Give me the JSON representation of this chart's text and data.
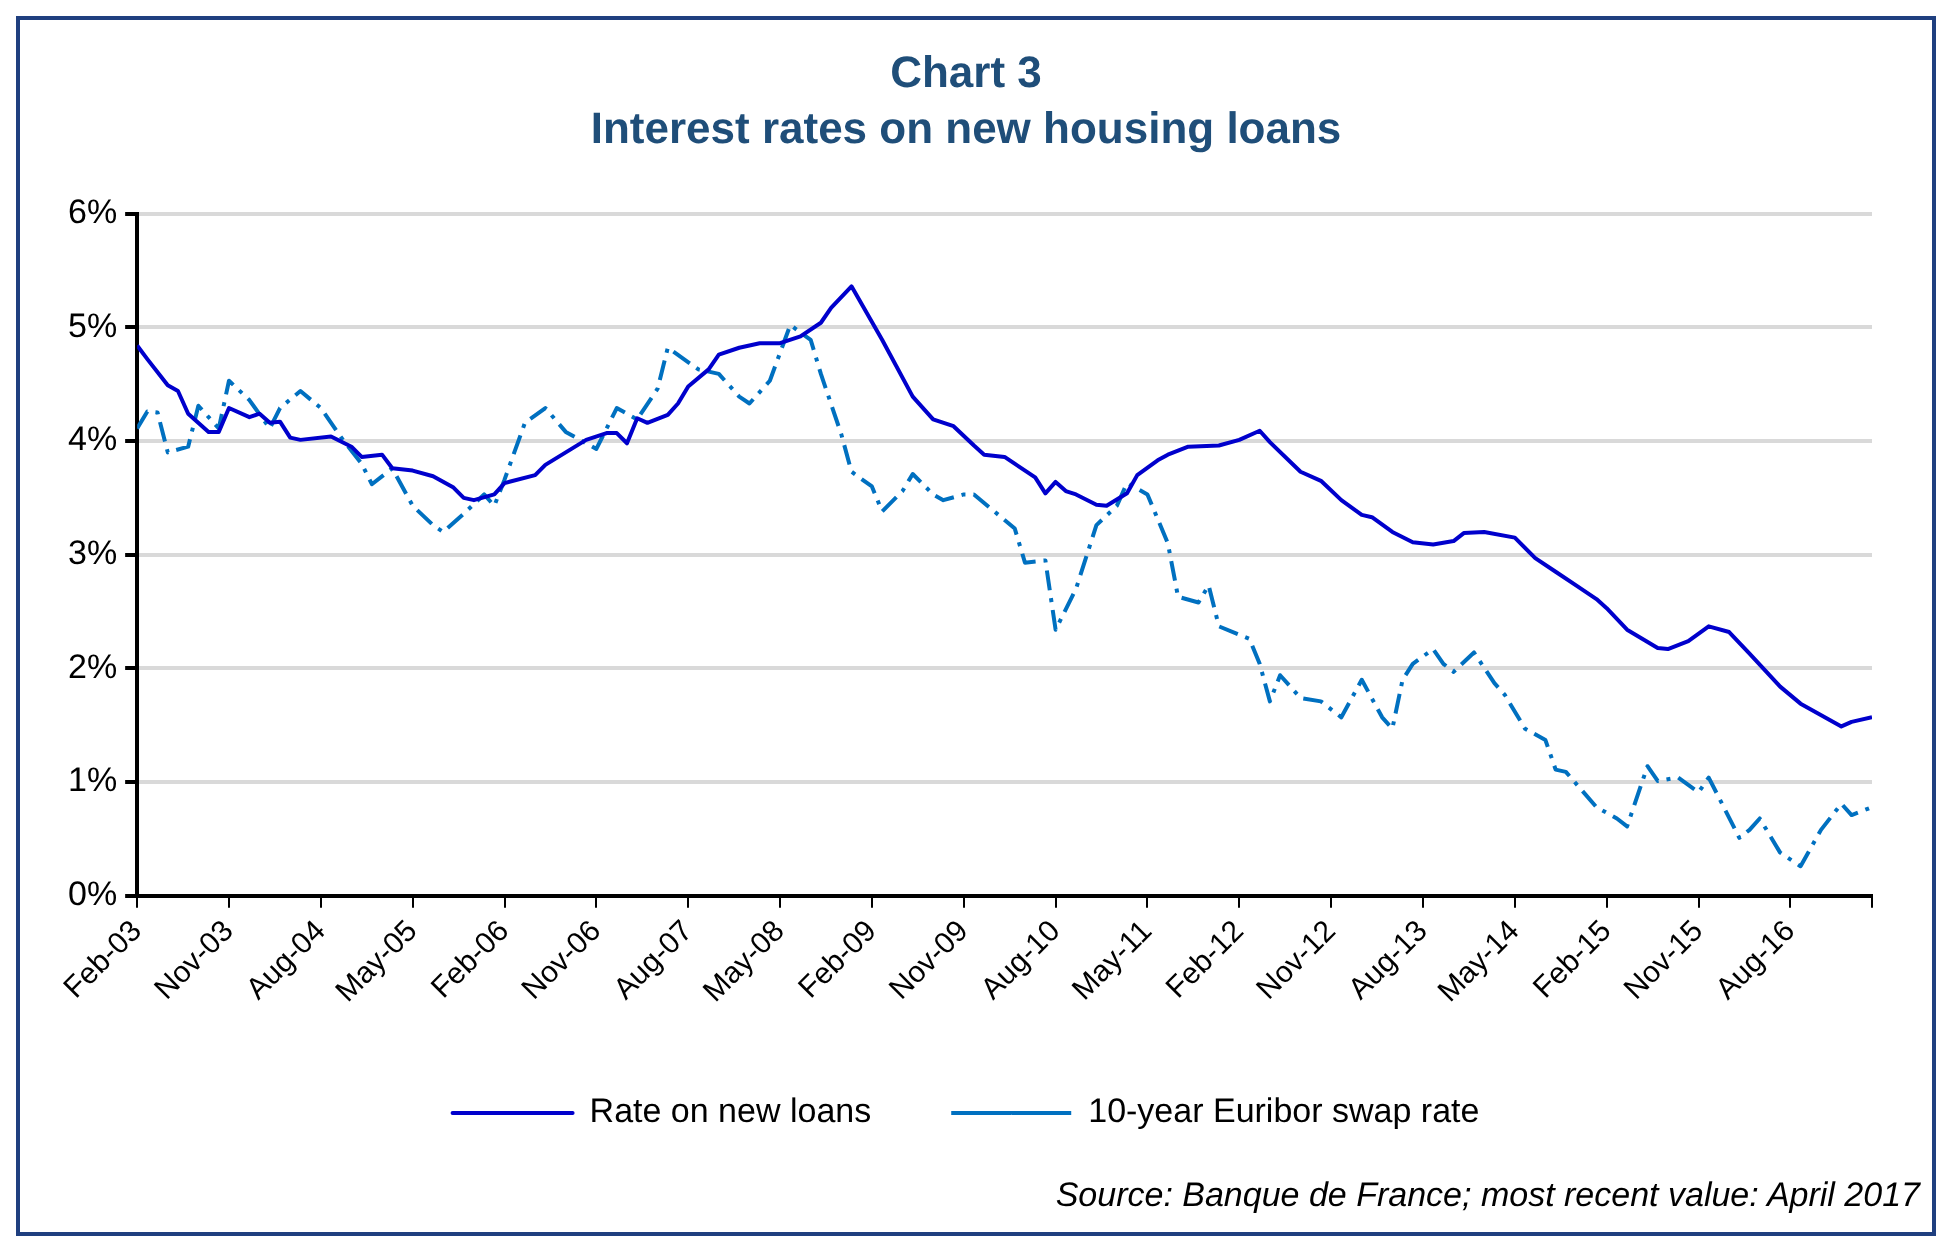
{
  "chart_data": {
    "type": "line",
    "title": "Chart 3",
    "subtitle": "Interest rates on new housing loans",
    "xlim": [
      "2003-02",
      "2017-04"
    ],
    "xticks": [
      {
        "value": "2003-02",
        "label": "Feb-03"
      },
      {
        "value": "2003-11",
        "label": "Nov-03"
      },
      {
        "value": "2004-08",
        "label": "Aug-04"
      },
      {
        "value": "2005-05",
        "label": "May-05"
      },
      {
        "value": "2006-02",
        "label": "Feb-06"
      },
      {
        "value": "2006-11",
        "label": "Nov-06"
      },
      {
        "value": "2007-08",
        "label": "Aug-07"
      },
      {
        "value": "2008-05",
        "label": "May-08"
      },
      {
        "value": "2009-02",
        "label": "Feb-09"
      },
      {
        "value": "2009-11",
        "label": "Nov-09"
      },
      {
        "value": "2010-08",
        "label": "Aug-10"
      },
      {
        "value": "2011-05",
        "label": "May-11"
      },
      {
        "value": "2012-02",
        "label": "Feb-12"
      },
      {
        "value": "2012-11",
        "label": "Nov-12"
      },
      {
        "value": "2013-08",
        "label": "Aug-13"
      },
      {
        "value": "2014-05",
        "label": "May-14"
      },
      {
        "value": "2015-02",
        "label": "Feb-15"
      },
      {
        "value": "2015-11",
        "label": "Nov-15"
      },
      {
        "value": "2016-08",
        "label": "Aug-16"
      },
      {
        "value": "2017-04",
        "label": null
      }
    ],
    "ylim": [
      0,
      6
    ],
    "yticks": [
      {
        "value": 0,
        "label": "0%"
      },
      {
        "value": 1,
        "label": "1%"
      },
      {
        "value": 2,
        "label": "2%"
      },
      {
        "value": 3,
        "label": "3%"
      },
      {
        "value": 4,
        "label": "4%"
      },
      {
        "value": 5,
        "label": "5%"
      },
      {
        "value": 6,
        "label": "6%"
      }
    ],
    "grid": "y",
    "legend": "bottom",
    "marker": "none",
    "series": [
      {
        "name": "Rate on new loans",
        "color": "#0000cc",
        "line_style": "solid",
        "x": [
          "2003-02",
          "2003-03",
          "2003-05",
          "2003-06",
          "2003-07",
          "2003-09",
          "2003-10",
          "2003-11",
          "2004-01",
          "2004-02",
          "2004-03",
          "2004-04",
          "2004-05",
          "2004-06",
          "2004-09",
          "2004-11",
          "2004-12",
          "2005-02",
          "2005-03",
          "2005-05",
          "2005-07",
          "2005-09",
          "2005-10",
          "2005-11",
          "2006-01",
          "2006-02",
          "2006-05",
          "2006-06",
          "2006-08",
          "2006-10",
          "2006-12",
          "2007-01",
          "2007-02",
          "2007-03",
          "2007-04",
          "2007-06",
          "2007-07",
          "2007-08",
          "2007-10",
          "2007-11",
          "2008-01",
          "2008-03",
          "2008-05",
          "2008-07",
          "2008-09",
          "2008-10",
          "2008-12",
          "2009-03",
          "2009-06",
          "2009-08",
          "2009-10",
          "2009-12",
          "2010-01",
          "2010-03",
          "2010-06",
          "2010-07",
          "2010-08",
          "2010-09",
          "2010-10",
          "2010-12",
          "2011-01",
          "2011-03",
          "2011-04",
          "2011-06",
          "2011-07",
          "2011-09",
          "2011-12",
          "2012-02",
          "2012-04",
          "2012-05",
          "2012-08",
          "2012-10",
          "2012-12",
          "2013-02",
          "2013-03",
          "2013-05",
          "2013-07",
          "2013-09",
          "2013-11",
          "2013-12",
          "2014-02",
          "2014-05",
          "2014-07",
          "2014-09",
          "2014-11",
          "2015-01",
          "2015-02",
          "2015-04",
          "2015-07",
          "2015-08",
          "2015-10",
          "2015-12",
          "2016-02",
          "2016-04",
          "2016-07",
          "2016-09",
          "2017-01",
          "2017-02",
          "2017-04"
        ],
        "values": [
          4.84,
          4.72,
          4.49,
          4.44,
          4.24,
          4.08,
          4.08,
          4.29,
          4.21,
          4.24,
          4.16,
          4.17,
          4.03,
          4.01,
          4.04,
          3.95,
          3.86,
          3.88,
          3.76,
          3.74,
          3.69,
          3.59,
          3.5,
          3.48,
          3.53,
          3.63,
          3.7,
          3.79,
          3.9,
          4.01,
          4.07,
          4.07,
          3.98,
          4.2,
          4.16,
          4.23,
          4.33,
          4.48,
          4.63,
          4.76,
          4.82,
          4.86,
          4.86,
          4.92,
          5.04,
          5.17,
          5.36,
          4.89,
          4.39,
          4.19,
          4.13,
          3.96,
          3.88,
          3.86,
          3.68,
          3.54,
          3.64,
          3.56,
          3.53,
          3.44,
          3.43,
          3.54,
          3.7,
          3.83,
          3.88,
          3.95,
          3.96,
          4.01,
          4.09,
          3.99,
          3.73,
          3.65,
          3.48,
          3.35,
          3.33,
          3.2,
          3.11,
          3.09,
          3.12,
          3.19,
          3.2,
          3.15,
          2.97,
          2.85,
          2.73,
          2.61,
          2.53,
          2.34,
          2.18,
          2.17,
          2.24,
          2.37,
          2.32,
          2.13,
          1.84,
          1.69,
          1.49,
          1.53,
          1.57
        ]
      },
      {
        "name": "10-year Euribor swap rate",
        "color": "#0070c0",
        "line_style": "dashed",
        "x": [
          "2003-02",
          "2003-03",
          "2003-04",
          "2003-05",
          "2003-07",
          "2003-08",
          "2003-10",
          "2003-11",
          "2004-01",
          "2004-03",
          "2004-04",
          "2004-06",
          "2004-08",
          "2004-10",
          "2004-12",
          "2005-01",
          "2005-03",
          "2005-05",
          "2005-07",
          "2005-08",
          "2005-10",
          "2005-12",
          "2006-01",
          "2006-02",
          "2006-04",
          "2006-06",
          "2006-08",
          "2006-11",
          "2007-01",
          "2007-03",
          "2007-05",
          "2007-06",
          "2007-09",
          "2007-11",
          "2008-01",
          "2008-02",
          "2008-04",
          "2008-06",
          "2008-08",
          "2008-09",
          "2008-11",
          "2008-12",
          "2009-02",
          "2009-03",
          "2009-05",
          "2009-06",
          "2009-08",
          "2009-09",
          "2009-11",
          "2009-12",
          "2010-04",
          "2010-05",
          "2010-07",
          "2010-08",
          "2010-10",
          "2010-12",
          "2011-02",
          "2011-03",
          "2011-05",
          "2011-07",
          "2011-08",
          "2011-10",
          "2011-11",
          "2011-12",
          "2012-03",
          "2012-04",
          "2012-05",
          "2012-06",
          "2012-08",
          "2012-10",
          "2012-12",
          "2013-02",
          "2013-04",
          "2013-05",
          "2013-06",
          "2013-07",
          "2013-09",
          "2013-10",
          "2013-11",
          "2014-01",
          "2014-03",
          "2014-04",
          "2014-06",
          "2014-08",
          "2014-09",
          "2014-10",
          "2015-01",
          "2015-03",
          "2015-04",
          "2015-06",
          "2015-07",
          "2015-09",
          "2015-11",
          "2015-12",
          "2016-03",
          "2016-04",
          "2016-05",
          "2016-07",
          "2016-09",
          "2016-11",
          "2017-01",
          "2017-02",
          "2017-04"
        ],
        "values": [
          4.11,
          4.26,
          4.25,
          3.9,
          3.95,
          4.31,
          4.11,
          4.53,
          4.36,
          4.11,
          4.29,
          4.44,
          4.29,
          4.03,
          3.8,
          3.62,
          3.76,
          3.43,
          3.26,
          3.2,
          3.36,
          3.53,
          3.43,
          3.66,
          4.16,
          4.29,
          4.08,
          3.93,
          4.29,
          4.19,
          4.46,
          4.82,
          4.63,
          4.59,
          4.39,
          4.33,
          4.53,
          5.02,
          4.89,
          4.59,
          4.06,
          3.73,
          3.6,
          3.38,
          3.56,
          3.71,
          3.53,
          3.48,
          3.53,
          3.53,
          3.23,
          2.93,
          2.95,
          2.34,
          2.7,
          3.26,
          3.43,
          3.63,
          3.53,
          3.1,
          2.63,
          2.58,
          2.73,
          2.37,
          2.26,
          2.04,
          1.71,
          1.94,
          1.74,
          1.71,
          1.57,
          1.9,
          1.57,
          1.47,
          1.9,
          2.04,
          2.17,
          2.04,
          1.97,
          2.14,
          1.87,
          1.77,
          1.47,
          1.37,
          1.11,
          1.09,
          0.78,
          0.68,
          0.61,
          1.14,
          1.01,
          1.04,
          0.91,
          1.04,
          0.51,
          0.58,
          0.68,
          0.38,
          0.26,
          0.58,
          0.81,
          0.71,
          0.78
        ]
      }
    ],
    "annotations": [
      "Source: Banque de France; most recent value: April 2017"
    ]
  }
}
